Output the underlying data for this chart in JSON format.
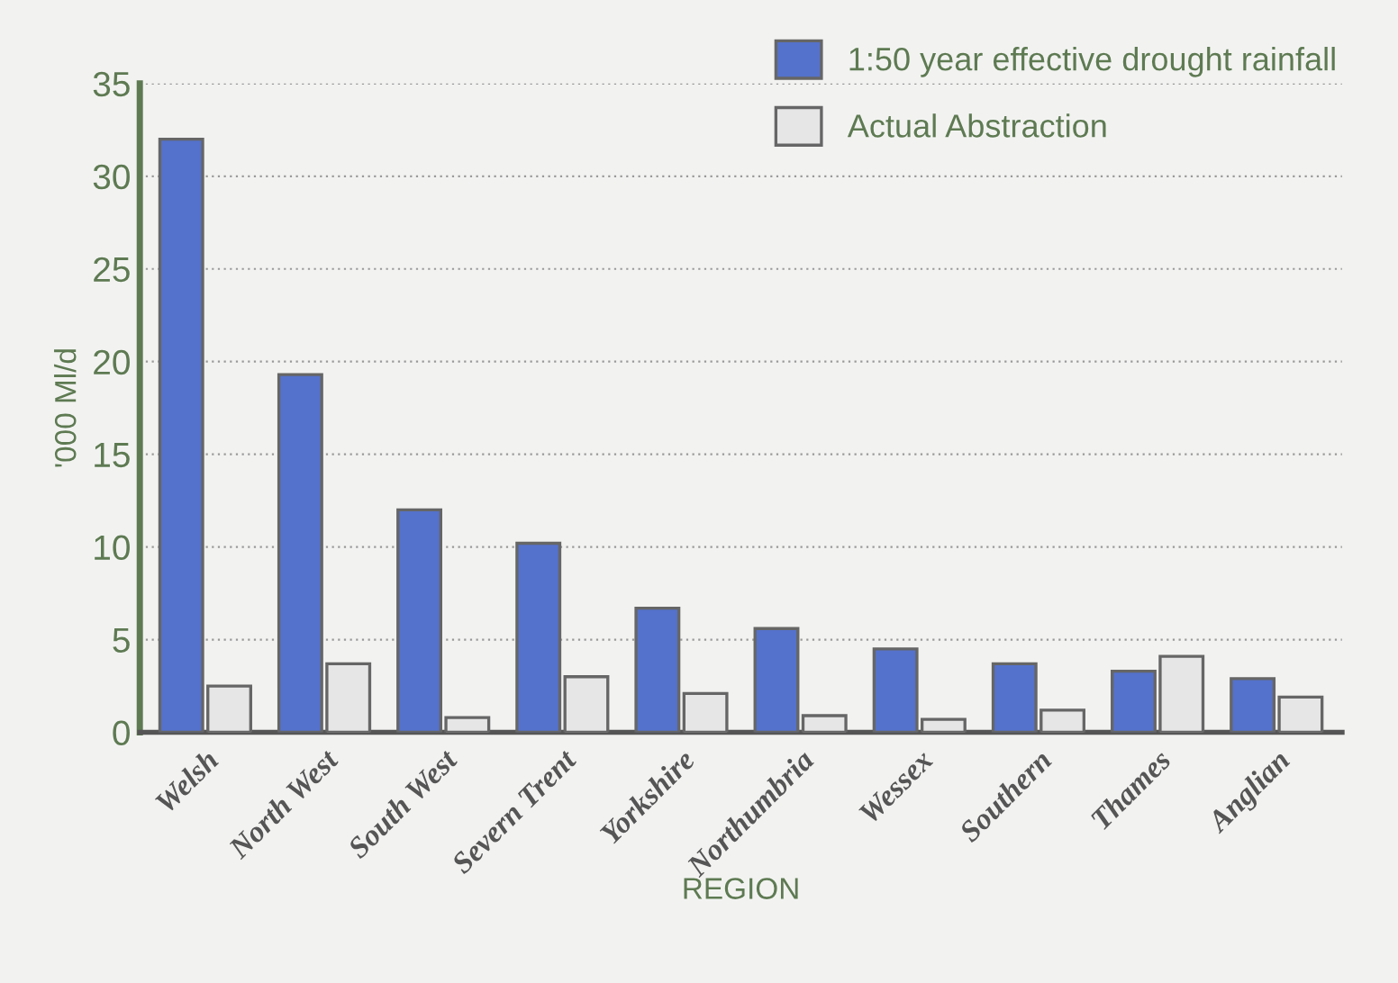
{
  "chart_data": {
    "type": "bar",
    "xlabel": "REGION",
    "ylabel": "'000 Ml/d",
    "categories": [
      "Welsh",
      "North West",
      "South West",
      "Severn Trent",
      "Yorkshire",
      "Northumbria",
      "Wessex",
      "Southern",
      "Thames",
      "Anglian"
    ],
    "series": [
      {
        "name": "1:50 year effective drought rainfall",
        "color": "#5472cc",
        "values": [
          32,
          19.3,
          12,
          10.2,
          6.7,
          5.6,
          4.5,
          3.7,
          3.3,
          2.9
        ]
      },
      {
        "name": "Actual Abstraction",
        "color": "#e6e6e6",
        "values": [
          2.5,
          3.7,
          0.8,
          3,
          2.1,
          0.9,
          0.7,
          1.2,
          4.1,
          1.9
        ]
      }
    ],
    "ylim": [
      0,
      35
    ],
    "yticks": [
      0,
      5,
      10,
      15,
      20,
      25,
      30,
      35
    ],
    "grid": "y",
    "legend": "top right"
  }
}
